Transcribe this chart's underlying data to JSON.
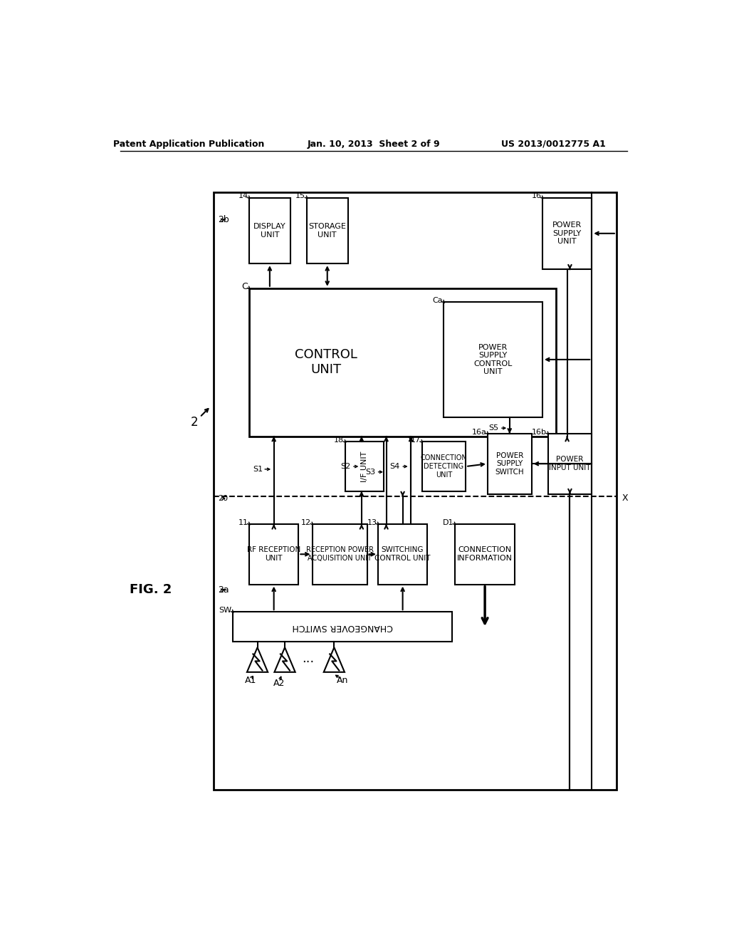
{
  "header_left": "Patent Application Publication",
  "header_mid": "Jan. 10, 2013  Sheet 2 of 9",
  "header_right": "US 2013/0012775 A1",
  "background": "#ffffff",
  "line_color": "#000000"
}
